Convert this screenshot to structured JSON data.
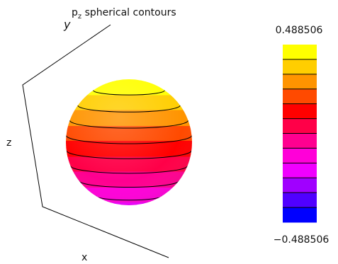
{
  "chart_data": {
    "type": "surface",
    "title": "p",
    "title_subscript": "z",
    "title_rest": " spherical contours",
    "axis_labels": {
      "x": "x",
      "y": "y",
      "z": "z"
    },
    "colorbar": {
      "max_label": "0.488506",
      "min_label": "−0.488506",
      "range": [
        -0.488506,
        0.488506
      ],
      "colors": [
        "#0000ff",
        "#5000ff",
        "#a000ff",
        "#f000ff",
        "#ff00d8",
        "#ff0090",
        "#ff0048",
        "#ff0000",
        "#ff4a00",
        "#ff9400",
        "#ffce00",
        "#ffff00"
      ],
      "contour_count": 11
    },
    "sphere": {
      "visible_value_range": [
        -0.18,
        0.488506
      ],
      "contour_levels": [
        0.43,
        0.35,
        0.27,
        0.19,
        0.11,
        0.03,
        -0.05,
        -0.13
      ]
    }
  }
}
